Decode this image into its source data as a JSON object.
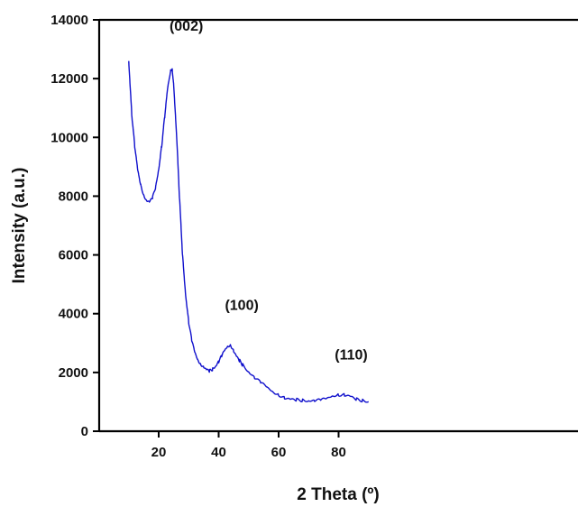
{
  "chart_data": {
    "type": "line",
    "title": "",
    "xlabel": "2 Theta (º)",
    "ylabel": "Intensity (a.u.)",
    "xlim": [
      10,
      90
    ],
    "ylim": [
      0,
      14000
    ],
    "xticks": [
      20,
      40,
      60,
      80
    ],
    "yticks": [
      0,
      2000,
      4000,
      6000,
      8000,
      10000,
      12000,
      14000
    ],
    "grid": false,
    "legend": "none",
    "series_color": "#1010cc",
    "annotations": [
      {
        "text": "(002)",
        "x": 25,
        "y": 12900
      },
      {
        "text": "(100)",
        "x": 43.5,
        "y": 3400
      },
      {
        "text": "(110)",
        "x": 80,
        "y": 1700
      }
    ],
    "series": [
      {
        "x": [
          10,
          11,
          12,
          13,
          14,
          15,
          16,
          17,
          18,
          19,
          20,
          21,
          22,
          23,
          24,
          24.5,
          25,
          26,
          27,
          28,
          29,
          30,
          31,
          32,
          33,
          34,
          35,
          36,
          37,
          38,
          39,
          40,
          41,
          42,
          43,
          44,
          45,
          46,
          47,
          48,
          50,
          52,
          54,
          56,
          58,
          60,
          62,
          64,
          66,
          68,
          70,
          72,
          74,
          76,
          78,
          80,
          82,
          84,
          86,
          88,
          90
        ],
        "y": [
          12600,
          10800,
          9700,
          8900,
          8400,
          8050,
          7850,
          7800,
          7950,
          8300,
          8900,
          9700,
          10700,
          11700,
          12300,
          12350,
          11800,
          10000,
          7800,
          5900,
          4600,
          3700,
          3100,
          2700,
          2450,
          2300,
          2200,
          2100,
          2050,
          2100,
          2200,
          2350,
          2550,
          2750,
          2900,
          2950,
          2750,
          2550,
          2400,
          2250,
          2000,
          1800,
          1650,
          1500,
          1350,
          1250,
          1150,
          1100,
          1080,
          1050,
          1020,
          1020,
          1050,
          1100,
          1200,
          1250,
          1250,
          1200,
          1100,
          1050,
          1000
        ]
      }
    ]
  }
}
